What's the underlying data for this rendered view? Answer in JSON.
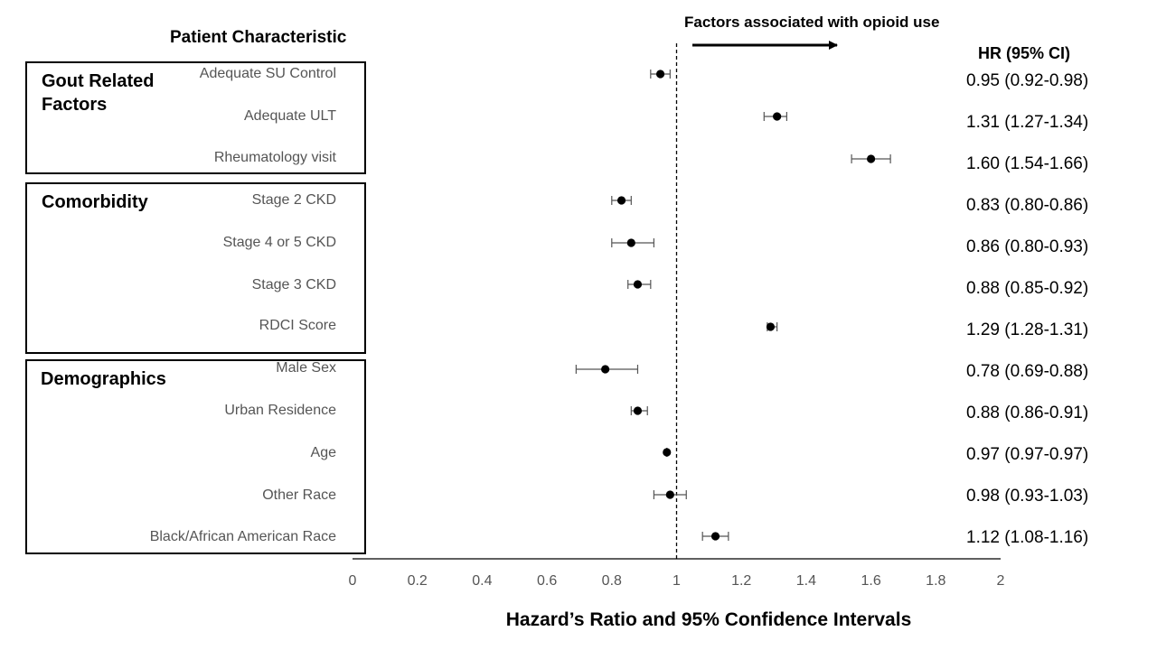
{
  "chart_data": {
    "type": "forest",
    "title": "Patient Characteristic",
    "annotation": "Factors associated with opioid use",
    "value_header": "HR (95% CI)",
    "xlabel": "Hazard’s Ratio and 95% Confidence Intervals",
    "xlim": [
      0,
      2
    ],
    "xticks": [
      0,
      0.2,
      0.4,
      0.6,
      0.8,
      1,
      1.2,
      1.4,
      1.6,
      1.8,
      2
    ],
    "xtick_labels": [
      "0",
      "0.2",
      "0.4",
      "0.6",
      "0.8",
      "1",
      "1.2",
      "1.4",
      "1.6",
      "1.8",
      "2"
    ],
    "reference_line": 1,
    "groups": [
      {
        "name": "Gout Related Factors",
        "rows": [
          {
            "label": "Adequate SU Control",
            "hr": 0.95,
            "lower": 0.92,
            "upper": 0.98,
            "text": "0.95 (0.92-0.98)"
          },
          {
            "label": "Adequate ULT",
            "hr": 1.31,
            "lower": 1.27,
            "upper": 1.34,
            "text": "1.31 (1.27-1.34)"
          },
          {
            "label": "Rheumatology visit",
            "hr": 1.6,
            "lower": 1.54,
            "upper": 1.66,
            "text": "1.60 (1.54-1.66)"
          }
        ]
      },
      {
        "name": "Comorbidity",
        "rows": [
          {
            "label": "Stage 2 CKD",
            "hr": 0.83,
            "lower": 0.8,
            "upper": 0.86,
            "text": "0.83 (0.80-0.86)"
          },
          {
            "label": "Stage 4 or 5 CKD",
            "hr": 0.86,
            "lower": 0.8,
            "upper": 0.93,
            "text": "0.86 (0.80-0.93)"
          },
          {
            "label": "Stage 3 CKD",
            "hr": 0.88,
            "lower": 0.85,
            "upper": 0.92,
            "text": "0.88 (0.85-0.92)"
          },
          {
            "label": "RDCI Score",
            "hr": 1.29,
            "lower": 1.28,
            "upper": 1.31,
            "text": "1.29 (1.28-1.31)"
          }
        ]
      },
      {
        "name": "Demographics",
        "rows": [
          {
            "label": "Male Sex",
            "hr": 0.78,
            "lower": 0.69,
            "upper": 0.88,
            "text": "0.78 (0.69-0.88)"
          },
          {
            "label": "Urban Residence",
            "hr": 0.88,
            "lower": 0.86,
            "upper": 0.91,
            "text": "0.88 (0.86-0.91)"
          },
          {
            "label": "Age",
            "hr": 0.97,
            "lower": 0.97,
            "upper": 0.97,
            "text": "0.97 (0.97-0.97)"
          },
          {
            "label": "Other Race",
            "hr": 0.98,
            "lower": 0.93,
            "upper": 1.03,
            "text": "0.98 (0.93-1.03)"
          },
          {
            "label": "Black/African American Race",
            "hr": 1.12,
            "lower": 1.08,
            "upper": 1.16,
            "text": "1.12 (1.08-1.16)"
          }
        ]
      }
    ]
  }
}
